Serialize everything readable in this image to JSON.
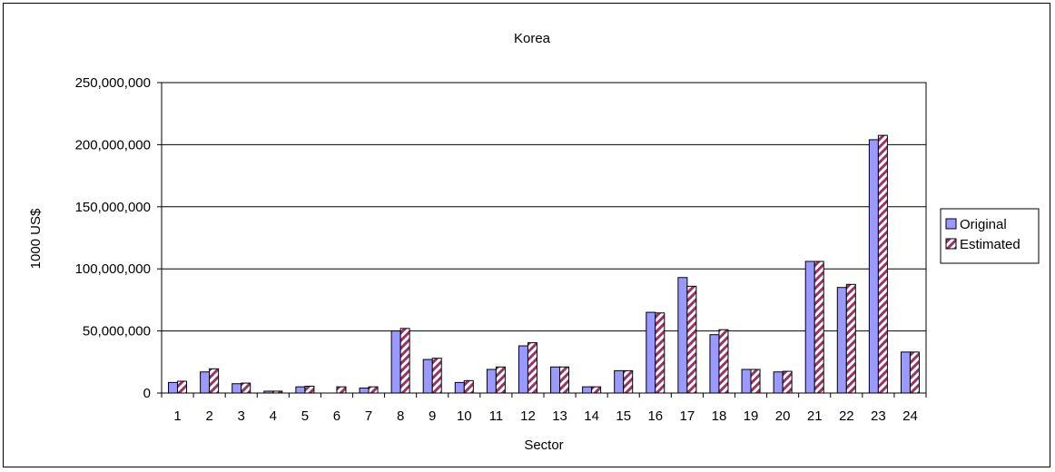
{
  "chart_data": {
    "type": "bar",
    "title": "Korea",
    "xlabel": "Sector",
    "ylabel": "1000 US$",
    "ylim": [
      0,
      250000000
    ],
    "y_ticks": [
      "0",
      "50,000,000",
      "100,000,000",
      "150,000,000",
      "200,000,000",
      "250,000,000"
    ],
    "y_tick_values": [
      0,
      50000000,
      100000000,
      150000000,
      200000000,
      250000000
    ],
    "categories": [
      "1",
      "2",
      "3",
      "4",
      "5",
      "6",
      "7",
      "8",
      "9",
      "10",
      "11",
      "12",
      "13",
      "14",
      "15",
      "16",
      "17",
      "18",
      "19",
      "20",
      "21",
      "22",
      "23",
      "24"
    ],
    "grid": true,
    "legend_position": "right",
    "series": [
      {
        "name": "Original",
        "color": "#9999ff",
        "pattern": "solid",
        "values": [
          8500000,
          17000000,
          7500000,
          1500000,
          5000000,
          0,
          4000000,
          50000000,
          27000000,
          8500000,
          19000000,
          38000000,
          21000000,
          5000000,
          18000000,
          65000000,
          93000000,
          47000000,
          19000000,
          17000000,
          106000000,
          85000000,
          204000000,
          33000000
        ]
      },
      {
        "name": "Estimated",
        "color": "#993366",
        "pattern": "diagonal-stripes",
        "values": [
          9500000,
          19500000,
          8000000,
          1500000,
          5500000,
          5000000,
          5000000,
          52000000,
          28000000,
          10000000,
          21000000,
          40500000,
          21000000,
          5000000,
          18000000,
          64500000,
          86000000,
          51000000,
          19000000,
          17500000,
          106000000,
          87500000,
          207500000,
          33000000
        ]
      }
    ]
  }
}
